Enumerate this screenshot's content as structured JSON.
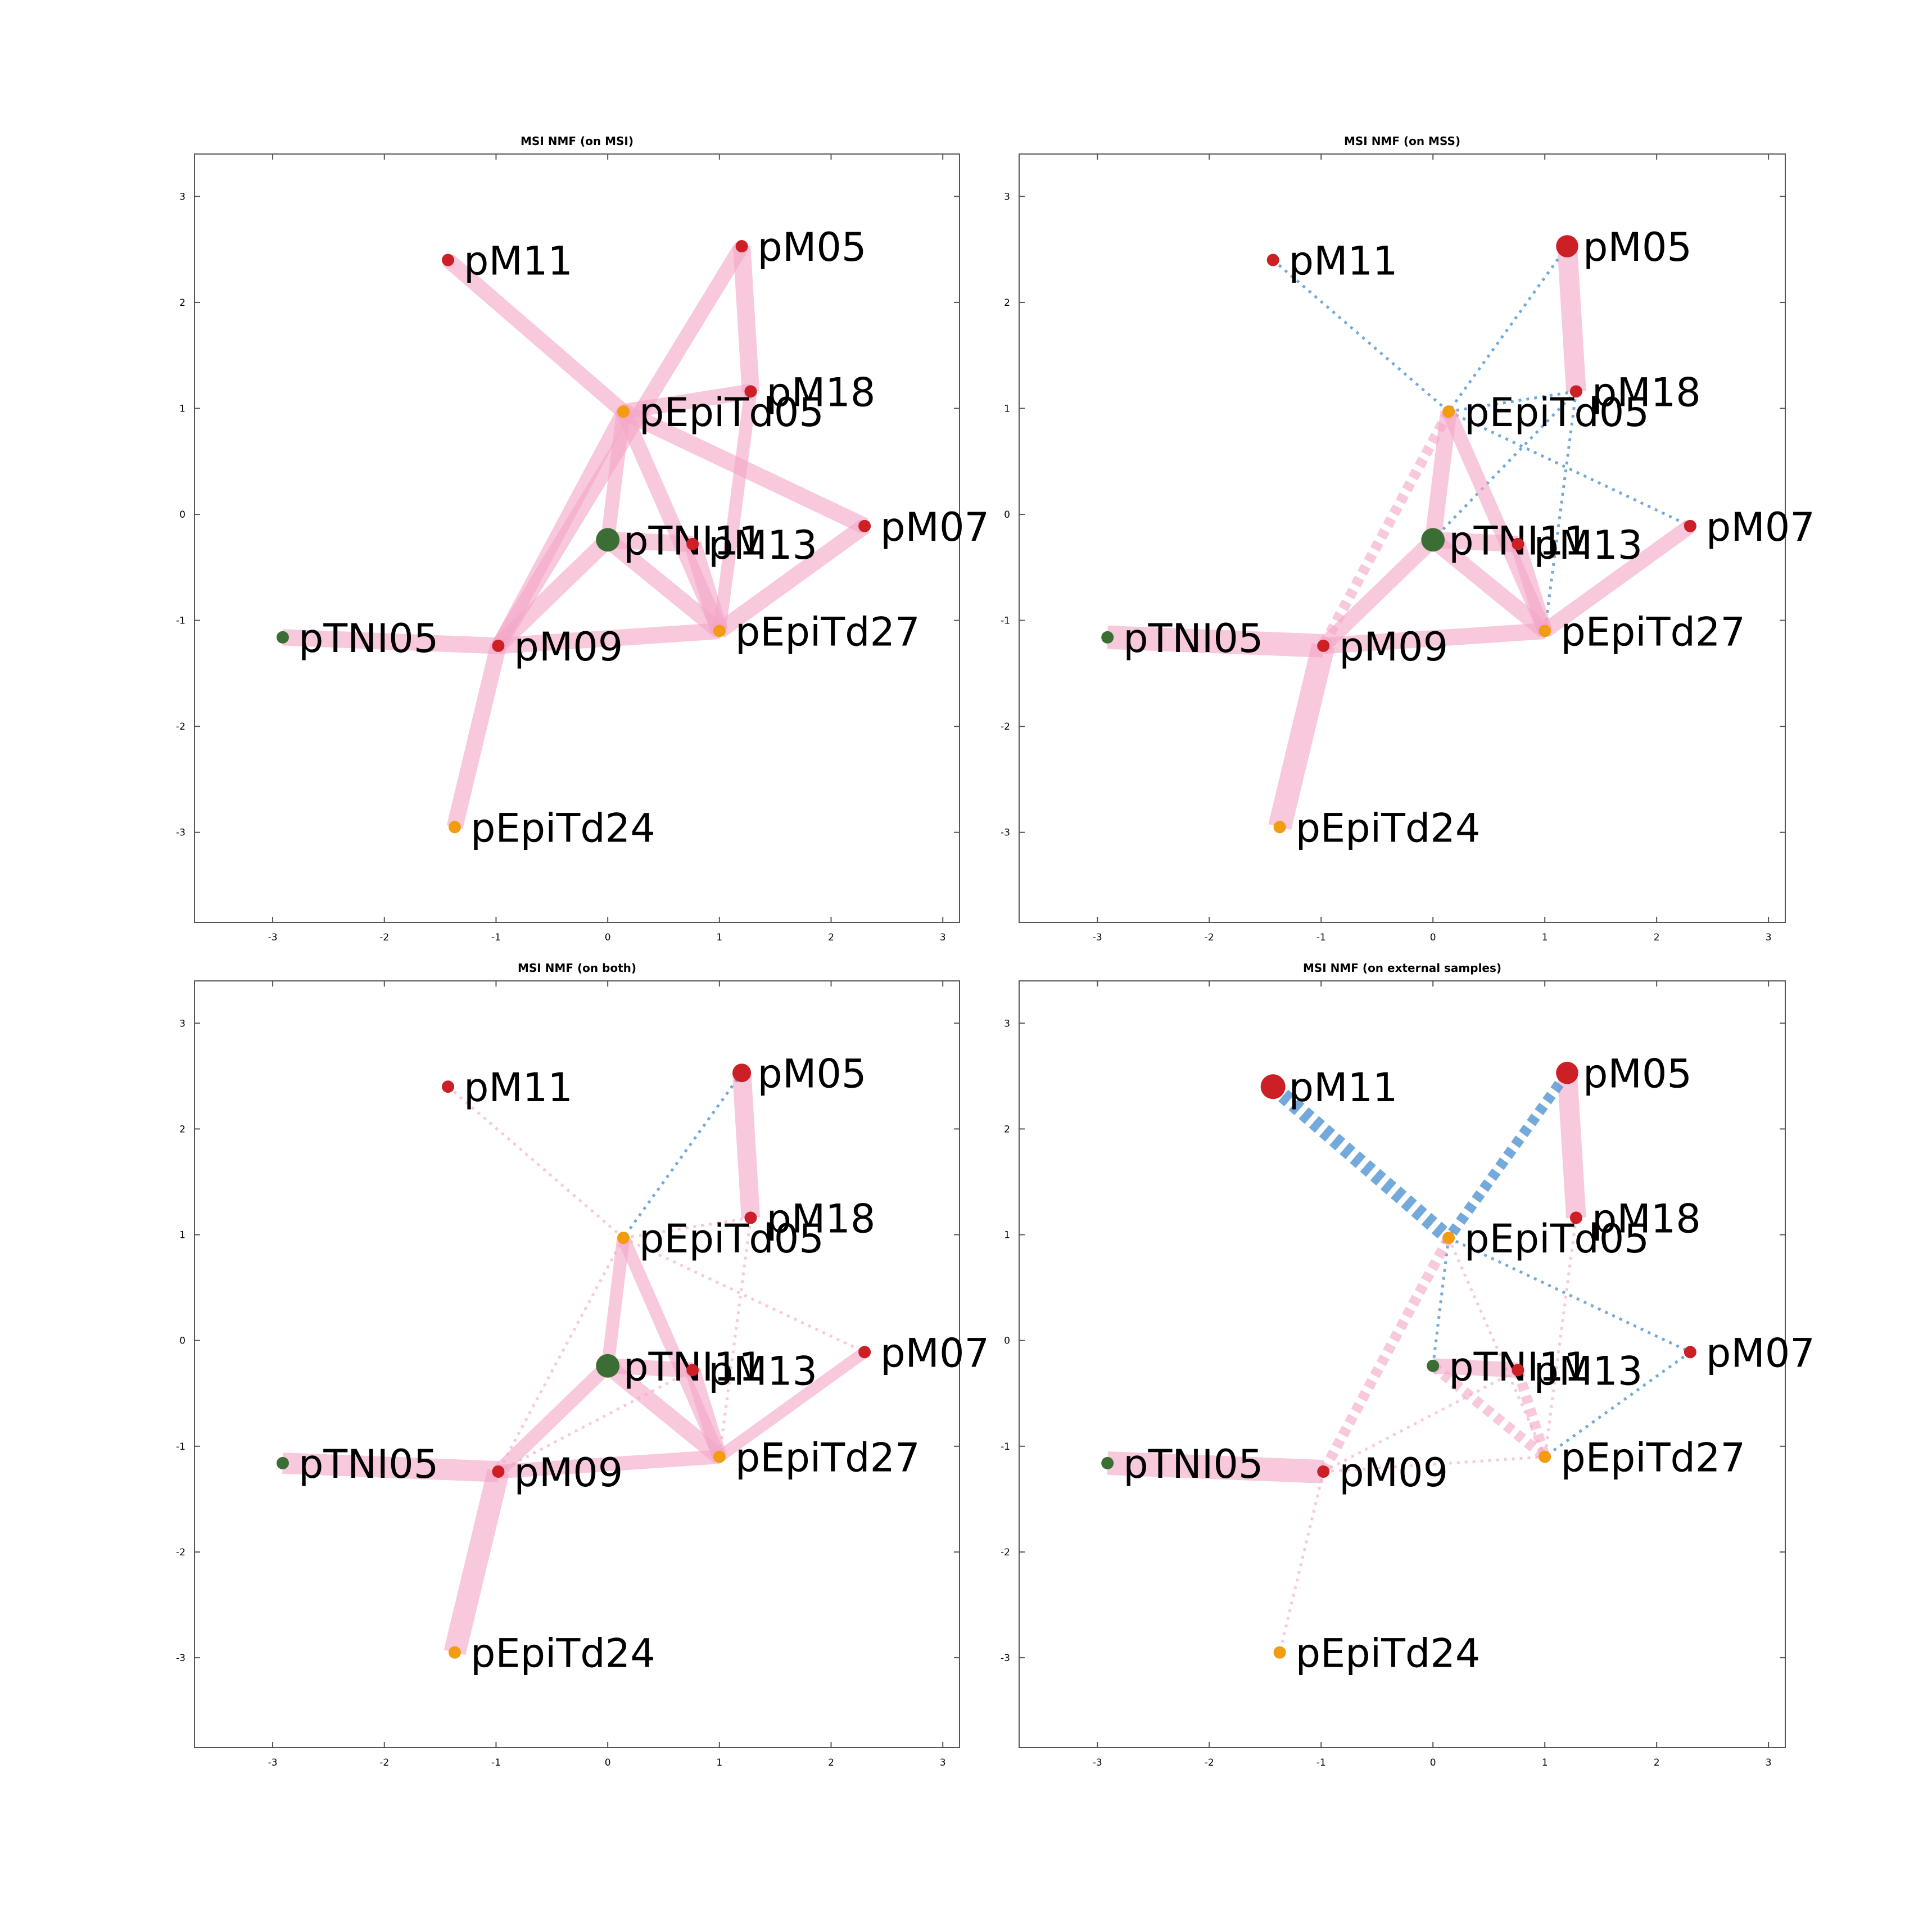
{
  "colors": {
    "positive_edge": "#f4a6c8",
    "negative_edge": "#5b9bd5",
    "msi_node": "#cc1f26",
    "mss_node": "#3a6e34",
    "organoid_node": "#f39c12"
  },
  "chart_data": [
    {
      "type": "network",
      "title": "MSI NMF (on MSI)",
      "xlim": [
        -3.7,
        3.15
      ],
      "ylim": [
        -3.85,
        3.4
      ],
      "xticks": [
        -3,
        -2,
        -1,
        0,
        1,
        2,
        3
      ],
      "yticks": [
        -3,
        -2,
        -1,
        0,
        1,
        2,
        3
      ],
      "nodes": [
        {
          "label": "pM11",
          "x": -1.43,
          "y": 2.4,
          "group": "msi",
          "size": 1
        },
        {
          "label": "pM05",
          "x": 1.2,
          "y": 2.53,
          "group": "msi",
          "size": 1
        },
        {
          "label": "pM18",
          "x": 1.28,
          "y": 1.16,
          "group": "msi",
          "size": 1
        },
        {
          "label": "pEpiTd05",
          "x": 0.14,
          "y": 0.97,
          "group": "organoid",
          "size": 1
        },
        {
          "label": "pM07",
          "x": 2.3,
          "y": -0.11,
          "group": "msi",
          "size": 1
        },
        {
          "label": "pTNI11",
          "x": 0.0,
          "y": -0.24,
          "group": "mss",
          "size": 1.9
        },
        {
          "label": "pM13",
          "x": 0.76,
          "y": -0.28,
          "group": "msi",
          "size": 1
        },
        {
          "label": "pTNI05",
          "x": -2.91,
          "y": -1.16,
          "group": "mss",
          "size": 1
        },
        {
          "label": "pM09",
          "x": -0.98,
          "y": -1.24,
          "group": "msi",
          "size": 1
        },
        {
          "label": "pEpiTd27",
          "x": 1.0,
          "y": -1.1,
          "group": "organoid",
          "size": 1
        },
        {
          "label": "pEpiTd24",
          "x": -1.37,
          "y": -2.95,
          "group": "organoid",
          "size": 1
        }
      ],
      "edges": [
        {
          "source": "pM11",
          "target": "pEpiTd05",
          "weight": 0.55,
          "sign": "positive"
        },
        {
          "source": "pM05",
          "target": "pM18",
          "weight": 0.65,
          "sign": "positive"
        },
        {
          "source": "pM05",
          "target": "pM09",
          "weight": 0.55,
          "sign": "positive"
        },
        {
          "source": "pEpiTd05",
          "target": "pM18",
          "weight": 0.55,
          "sign": "positive"
        },
        {
          "source": "pEpiTd05",
          "target": "pM07",
          "weight": 0.6,
          "sign": "positive"
        },
        {
          "source": "pEpiTd05",
          "target": "pTNI11",
          "weight": 0.5,
          "sign": "positive"
        },
        {
          "source": "pEpiTd05",
          "target": "pM09",
          "weight": 0.5,
          "sign": "positive"
        },
        {
          "source": "pEpiTd05",
          "target": "pEpiTd27",
          "weight": 0.55,
          "sign": "positive"
        },
        {
          "source": "pM18",
          "target": "pEpiTd27",
          "weight": 0.45,
          "sign": "positive"
        },
        {
          "source": "pTNI11",
          "target": "pM13",
          "weight": 0.6,
          "sign": "positive"
        },
        {
          "source": "pTNI11",
          "target": "pM09",
          "weight": 0.6,
          "sign": "positive"
        },
        {
          "source": "pTNI11",
          "target": "pEpiTd27",
          "weight": 0.6,
          "sign": "positive"
        },
        {
          "source": "pM13",
          "target": "pEpiTd27",
          "weight": 0.65,
          "sign": "positive"
        },
        {
          "source": "pM07",
          "target": "pEpiTd27",
          "weight": 0.6,
          "sign": "positive"
        },
        {
          "source": "pTNI05",
          "target": "pM09",
          "weight": 0.6,
          "sign": "positive"
        },
        {
          "source": "pM09",
          "target": "pEpiTd27",
          "weight": 0.6,
          "sign": "positive"
        },
        {
          "source": "pM09",
          "target": "pEpiTd24",
          "weight": 0.6,
          "sign": "positive"
        }
      ]
    },
    {
      "type": "network",
      "title": "MSI NMF (on MSS)",
      "xlim": [
        -3.7,
        3.15
      ],
      "ylim": [
        -3.85,
        3.4
      ],
      "xticks": [
        -3,
        -2,
        -1,
        0,
        1,
        2,
        3
      ],
      "yticks": [
        -3,
        -2,
        -1,
        0,
        1,
        2,
        3
      ],
      "nodes": [
        {
          "label": "pM11",
          "x": -1.43,
          "y": 2.4,
          "group": "msi",
          "size": 1
        },
        {
          "label": "pM05",
          "x": 1.2,
          "y": 2.53,
          "group": "msi",
          "size": 1.8
        },
        {
          "label": "pM18",
          "x": 1.28,
          "y": 1.16,
          "group": "msi",
          "size": 1
        },
        {
          "label": "pEpiTd05",
          "x": 0.14,
          "y": 0.97,
          "group": "organoid",
          "size": 1
        },
        {
          "label": "pM07",
          "x": 2.3,
          "y": -0.11,
          "group": "msi",
          "size": 1
        },
        {
          "label": "pTNI11",
          "x": 0.0,
          "y": -0.24,
          "group": "mss",
          "size": 1.9
        },
        {
          "label": "pM13",
          "x": 0.76,
          "y": -0.28,
          "group": "msi",
          "size": 1
        },
        {
          "label": "pTNI05",
          "x": -2.91,
          "y": -1.16,
          "group": "mss",
          "size": 1
        },
        {
          "label": "pM09",
          "x": -0.98,
          "y": -1.24,
          "group": "msi",
          "size": 1
        },
        {
          "label": "pEpiTd27",
          "x": 1.0,
          "y": -1.1,
          "group": "organoid",
          "size": 1
        },
        {
          "label": "pEpiTd24",
          "x": -1.37,
          "y": -2.95,
          "group": "organoid",
          "size": 1
        }
      ],
      "edges": [
        {
          "source": "pM05",
          "target": "pM18",
          "weight": 0.75,
          "sign": "positive"
        },
        {
          "source": "pM11",
          "target": "pEpiTd05",
          "weight": 0.15,
          "sign": "negative"
        },
        {
          "source": "pM05",
          "target": "pEpiTd05",
          "weight": 0.15,
          "sign": "negative"
        },
        {
          "source": "pEpiTd05",
          "target": "pM07",
          "weight": 0.15,
          "sign": "negative"
        },
        {
          "source": "pM18",
          "target": "pTNI11",
          "weight": 0.15,
          "sign": "negative"
        },
        {
          "source": "pM18",
          "target": "pEpiTd27",
          "weight": 0.15,
          "sign": "negative"
        },
        {
          "source": "pEpiTd05",
          "target": "pM18",
          "weight": 0.15,
          "sign": "negative"
        },
        {
          "source": "pEpiTd05",
          "target": "pTNI11",
          "weight": 0.6,
          "sign": "positive"
        },
        {
          "source": "pEpiTd05",
          "target": "pM09",
          "weight": 0.35,
          "sign": "positive-dashed"
        },
        {
          "source": "pEpiTd05",
          "target": "pEpiTd27",
          "weight": 0.5,
          "sign": "positive"
        },
        {
          "source": "pTNI11",
          "target": "pM13",
          "weight": 0.6,
          "sign": "positive"
        },
        {
          "source": "pTNI11",
          "target": "pM09",
          "weight": 0.55,
          "sign": "positive"
        },
        {
          "source": "pTNI11",
          "target": "pEpiTd27",
          "weight": 0.6,
          "sign": "positive"
        },
        {
          "source": "pM13",
          "target": "pEpiTd27",
          "weight": 0.55,
          "sign": "positive"
        },
        {
          "source": "pM07",
          "target": "pEpiTd27",
          "weight": 0.55,
          "sign": "positive"
        },
        {
          "source": "pTNI05",
          "target": "pM09",
          "weight": 0.9,
          "sign": "positive"
        },
        {
          "source": "pM09",
          "target": "pEpiTd27",
          "weight": 0.6,
          "sign": "positive"
        },
        {
          "source": "pM09",
          "target": "pEpiTd24",
          "weight": 0.9,
          "sign": "positive"
        }
      ]
    },
    {
      "type": "network",
      "title": "MSI NMF (on both)",
      "xlim": [
        -3.7,
        3.15
      ],
      "ylim": [
        -3.85,
        3.4
      ],
      "xticks": [
        -3,
        -2,
        -1,
        0,
        1,
        2,
        3
      ],
      "yticks": [
        -3,
        -2,
        -1,
        0,
        1,
        2,
        3
      ],
      "nodes": [
        {
          "label": "pM11",
          "x": -1.43,
          "y": 2.4,
          "group": "msi",
          "size": 1
        },
        {
          "label": "pM05",
          "x": 1.2,
          "y": 2.53,
          "group": "msi",
          "size": 1.5
        },
        {
          "label": "pM18",
          "x": 1.28,
          "y": 1.16,
          "group": "msi",
          "size": 1
        },
        {
          "label": "pEpiTd05",
          "x": 0.14,
          "y": 0.97,
          "group": "organoid",
          "size": 1
        },
        {
          "label": "pM07",
          "x": 2.3,
          "y": -0.11,
          "group": "msi",
          "size": 1
        },
        {
          "label": "pTNI11",
          "x": 0.0,
          "y": -0.24,
          "group": "mss",
          "size": 1.9
        },
        {
          "label": "pM13",
          "x": 0.76,
          "y": -0.28,
          "group": "msi",
          "size": 1
        },
        {
          "label": "pTNI05",
          "x": -2.91,
          "y": -1.16,
          "group": "mss",
          "size": 1
        },
        {
          "label": "pM09",
          "x": -0.98,
          "y": -1.24,
          "group": "msi",
          "size": 1
        },
        {
          "label": "pEpiTd27",
          "x": 1.0,
          "y": -1.1,
          "group": "organoid",
          "size": 1
        },
        {
          "label": "pEpiTd24",
          "x": -1.37,
          "y": -2.95,
          "group": "organoid",
          "size": 1
        }
      ],
      "edges": [
        {
          "source": "pM05",
          "target": "pM18",
          "weight": 0.7,
          "sign": "positive"
        },
        {
          "source": "pM05",
          "target": "pEpiTd05",
          "weight": 0.15,
          "sign": "negative"
        },
        {
          "source": "pM11",
          "target": "pEpiTd05",
          "weight": 0.15,
          "sign": "positive-dotted"
        },
        {
          "source": "pEpiTd05",
          "target": "pM07",
          "weight": 0.15,
          "sign": "positive-dotted"
        },
        {
          "source": "pEpiTd05",
          "target": "pM18",
          "weight": 0.15,
          "sign": "positive-dotted"
        },
        {
          "source": "pEpiTd05",
          "target": "pM09",
          "weight": 0.15,
          "sign": "positive-dotted"
        },
        {
          "source": "pM18",
          "target": "pEpiTd27",
          "weight": 0.15,
          "sign": "positive-dotted"
        },
        {
          "source": "pM09",
          "target": "pM13",
          "weight": 0.15,
          "sign": "positive-dotted"
        },
        {
          "source": "pEpiTd05",
          "target": "pTNI11",
          "weight": 0.45,
          "sign": "positive"
        },
        {
          "source": "pEpiTd05",
          "target": "pEpiTd27",
          "weight": 0.45,
          "sign": "positive"
        },
        {
          "source": "pTNI11",
          "target": "pM13",
          "weight": 0.55,
          "sign": "positive"
        },
        {
          "source": "pTNI11",
          "target": "pM09",
          "weight": 0.5,
          "sign": "positive"
        },
        {
          "source": "pTNI11",
          "target": "pEpiTd27",
          "weight": 0.6,
          "sign": "positive"
        },
        {
          "source": "pM13",
          "target": "pEpiTd27",
          "weight": 0.55,
          "sign": "positive"
        },
        {
          "source": "pM07",
          "target": "pEpiTd27",
          "weight": 0.4,
          "sign": "positive"
        },
        {
          "source": "pTNI05",
          "target": "pM09",
          "weight": 0.8,
          "sign": "positive"
        },
        {
          "source": "pM09",
          "target": "pEpiTd27",
          "weight": 0.5,
          "sign": "positive"
        },
        {
          "source": "pM09",
          "target": "pEpiTd24",
          "weight": 0.85,
          "sign": "positive"
        }
      ]
    },
    {
      "type": "network",
      "title": "MSI NMF (on external samples)",
      "xlim": [
        -3.7,
        3.15
      ],
      "ylim": [
        -3.85,
        3.4
      ],
      "xticks": [
        -3,
        -2,
        -1,
        0,
        1,
        2,
        3
      ],
      "yticks": [
        -3,
        -2,
        -1,
        0,
        1,
        2,
        3
      ],
      "nodes": [
        {
          "label": "pM11",
          "x": -1.43,
          "y": 2.4,
          "group": "msi",
          "size": 2.0
        },
        {
          "label": "pM05",
          "x": 1.2,
          "y": 2.53,
          "group": "msi",
          "size": 1.8
        },
        {
          "label": "pM18",
          "x": 1.28,
          "y": 1.16,
          "group": "msi",
          "size": 1
        },
        {
          "label": "pEpiTd05",
          "x": 0.14,
          "y": 0.97,
          "group": "organoid",
          "size": 1
        },
        {
          "label": "pM07",
          "x": 2.3,
          "y": -0.11,
          "group": "msi",
          "size": 1
        },
        {
          "label": "pTNI11",
          "x": 0.0,
          "y": -0.24,
          "group": "mss",
          "size": 1
        },
        {
          "label": "pM13",
          "x": 0.76,
          "y": -0.28,
          "group": "msi",
          "size": 1
        },
        {
          "label": "pTNI05",
          "x": -2.91,
          "y": -1.16,
          "group": "mss",
          "size": 1
        },
        {
          "label": "pM09",
          "x": -0.98,
          "y": -1.24,
          "group": "msi",
          "size": 1
        },
        {
          "label": "pEpiTd27",
          "x": 1.0,
          "y": -1.1,
          "group": "organoid",
          "size": 1
        },
        {
          "label": "pEpiTd24",
          "x": -1.37,
          "y": -2.95,
          "group": "organoid",
          "size": 1
        }
      ],
      "edges": [
        {
          "source": "pM05",
          "target": "pM18",
          "weight": 0.75,
          "sign": "positive"
        },
        {
          "source": "pM11",
          "target": "pEpiTd05",
          "weight": 0.55,
          "sign": "negative-dashed"
        },
        {
          "source": "pM05",
          "target": "pEpiTd05",
          "weight": 0.35,
          "sign": "negative-dashed"
        },
        {
          "source": "pEpiTd05",
          "target": "pM07",
          "weight": 0.15,
          "sign": "negative"
        },
        {
          "source": "pEpiTd05",
          "target": "pTNI11",
          "weight": 0.15,
          "sign": "negative"
        },
        {
          "source": "pM07",
          "target": "pEpiTd27",
          "weight": 0.15,
          "sign": "negative"
        },
        {
          "source": "pEpiTd05",
          "target": "pM09",
          "weight": 0.35,
          "sign": "positive-dashed"
        },
        {
          "source": "pEpiTd05",
          "target": "pEpiTd27",
          "weight": 0.15,
          "sign": "positive-dotted"
        },
        {
          "source": "pM18",
          "target": "pEpiTd27",
          "weight": 0.15,
          "sign": "positive-dotted"
        },
        {
          "source": "pM09",
          "target": "pEpiTd24",
          "weight": 0.15,
          "sign": "positive-dotted"
        },
        {
          "source": "pM09",
          "target": "pEpiTd27",
          "weight": 0.15,
          "sign": "positive-dotted"
        },
        {
          "source": "pM09",
          "target": "pM13",
          "weight": 0.15,
          "sign": "positive-dotted"
        },
        {
          "source": "pTNI11",
          "target": "pM13",
          "weight": 0.55,
          "sign": "positive"
        },
        {
          "source": "pTNI11",
          "target": "pEpiTd27",
          "weight": 0.35,
          "sign": "positive-dashed"
        },
        {
          "source": "pM13",
          "target": "pEpiTd27",
          "weight": 0.35,
          "sign": "positive-dashed"
        },
        {
          "source": "pTNI05",
          "target": "pM09",
          "weight": 0.9,
          "sign": "positive"
        }
      ]
    }
  ]
}
